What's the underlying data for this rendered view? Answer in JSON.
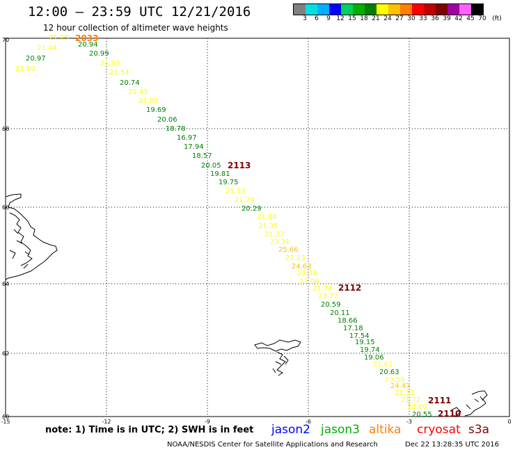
{
  "header": {
    "title": "12:00 – 23:59 UTC 12/21/2016",
    "subtitle": "12 hour collection of altimeter wave heights"
  },
  "colorbar": {
    "swatches": [
      "#808080",
      "#00e0e0",
      "#00b0ff",
      "#0000ff",
      "#00d060",
      "#00b000",
      "#008000",
      "#ffff00",
      "#ffc000",
      "#ff8000",
      "#ff0000",
      "#c00000",
      "#800000",
      "#a000a0",
      "#ff60ff",
      "#000000"
    ],
    "labels": [
      "3",
      "6",
      "9",
      "12",
      "15",
      "18",
      "21",
      "24",
      "27",
      "30",
      "33",
      "36",
      "39",
      "42",
      "45",
      "70",
      "(ft)"
    ]
  },
  "axes": {
    "lat_ticks": [
      "70",
      "68",
      "66",
      "64",
      "62",
      "60"
    ],
    "lon_ticks": [
      "-15",
      "-12",
      "-9",
      "-6",
      "-3",
      "0"
    ]
  },
  "pass_labels": [
    {
      "text": "2033",
      "color": "#ff8000"
    },
    {
      "text": "2113",
      "color": "#800000"
    },
    {
      "text": "2112",
      "color": "#800000"
    },
    {
      "text": "2111",
      "color": "#800000"
    },
    {
      "text": "2110",
      "color": "#800000"
    }
  ],
  "observations": [
    {
      "value": "21.19",
      "color": "#ffff00"
    },
    {
      "value": "21.44",
      "color": "#ffff00"
    },
    {
      "value": "20.97",
      "color": "#008000"
    },
    {
      "value": "21.80",
      "color": "#ffff00"
    },
    {
      "value": "20.94",
      "color": "#008000"
    },
    {
      "value": "20.99",
      "color": "#008000"
    },
    {
      "value": "21.93",
      "color": "#ffff00"
    },
    {
      "value": "21.54",
      "color": "#ffff00"
    },
    {
      "value": "20.74",
      "color": "#008000"
    },
    {
      "value": "21.43",
      "color": "#ffff00"
    },
    {
      "value": "21.09",
      "color": "#ffff00"
    },
    {
      "value": "19.69",
      "color": "#008000"
    },
    {
      "value": "20.06",
      "color": "#008000"
    },
    {
      "value": "18.78",
      "color": "#008000"
    },
    {
      "value": "16.97",
      "color": "#008000"
    },
    {
      "value": "17.94",
      "color": "#008000"
    },
    {
      "value": "18.57",
      "color": "#008000"
    },
    {
      "value": "20.05",
      "color": "#008000"
    },
    {
      "value": "19.81",
      "color": "#008000"
    },
    {
      "value": "19.75",
      "color": "#008000"
    },
    {
      "value": "21.13",
      "color": "#ffff00"
    },
    {
      "value": "21.79",
      "color": "#ffff00"
    },
    {
      "value": "20.29",
      "color": "#008000"
    },
    {
      "value": "21.64",
      "color": "#ffff00"
    },
    {
      "value": "21.35",
      "color": "#ffff00"
    },
    {
      "value": "21.37",
      "color": "#ffff00"
    },
    {
      "value": "23.31",
      "color": "#ffff00"
    },
    {
      "value": "25.66",
      "color": "#ffc000"
    },
    {
      "value": "23.23",
      "color": "#ffff00"
    },
    {
      "value": "24.63",
      "color": "#ffc000"
    },
    {
      "value": "23.38",
      "color": "#ffff00"
    },
    {
      "value": "23.06",
      "color": "#ffff00"
    },
    {
      "value": "21.74",
      "color": "#ffff00"
    },
    {
      "value": "23.77",
      "color": "#ffff00"
    },
    {
      "value": "20.59",
      "color": "#008000"
    },
    {
      "value": "20.11",
      "color": "#008000"
    },
    {
      "value": "18.66",
      "color": "#008000"
    },
    {
      "value": "17.18",
      "color": "#008000"
    },
    {
      "value": "17.54",
      "color": "#008000"
    },
    {
      "value": "19.15",
      "color": "#008000"
    },
    {
      "value": "19.74",
      "color": "#008000"
    },
    {
      "value": "19.06",
      "color": "#008000"
    },
    {
      "value": "21.61",
      "color": "#ffff00"
    },
    {
      "value": "20.63",
      "color": "#008000"
    },
    {
      "value": "23.54",
      "color": "#ffff00"
    },
    {
      "value": "24.47",
      "color": "#ffc000"
    },
    {
      "value": "21.13",
      "color": "#ffff00"
    },
    {
      "value": "21.72",
      "color": "#ffff00"
    },
    {
      "value": "23.60",
      "color": "#ffff00"
    },
    {
      "value": "20.55",
      "color": "#008000"
    }
  ],
  "note": {
    "text": "note:  1) Time is in UTC;  2) SWH is in feet"
  },
  "satellites": [
    {
      "name": "jason2",
      "color": "#0000ff"
    },
    {
      "name": "jason3",
      "color": "#00b000"
    },
    {
      "name": "altika",
      "color": "#ff8000"
    },
    {
      "name": "cryosat",
      "color": "#ff0000"
    },
    {
      "name": "s3a",
      "color": "#800000"
    }
  ],
  "footer": {
    "credit": "NOAA/NESDIS Center for Satellite Applications and Research",
    "timestamp": "Dec 22 13:28:35 UTC 2016"
  }
}
